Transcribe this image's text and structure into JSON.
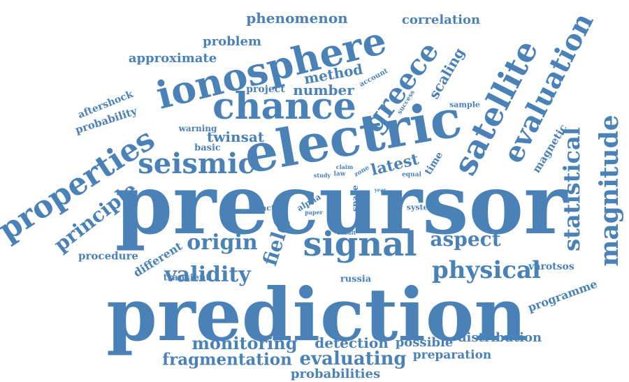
{
  "color": "#4a82b8",
  "words": {
    "w0": "precursor",
    "w1": "prediction",
    "w2": "electric",
    "w3": "ionosphere",
    "w4": "chance",
    "w5": "signal",
    "w6": "satellite",
    "w7": "evaluation",
    "w8": "magnitude",
    "w9": "properties",
    "w10": "statistical",
    "w11": "seismic",
    "w12": "greece",
    "w13": "physical",
    "w14": "principle",
    "w15": "origin",
    "w16": "validity",
    "w17": "aspect",
    "w18": "monitoring",
    "w19": "fragmentation",
    "w20": "evaluating",
    "w21": "field",
    "w22": "detection",
    "w23": "latest",
    "w24": "probabilities",
    "w25": "twinsat",
    "w26": "possible",
    "w27": "distribution",
    "w28": "phenomenon",
    "w29": "method",
    "w30": "number",
    "w31": "correlation",
    "w32": "scaling",
    "w33": "approximate",
    "w34": "problem",
    "w35": "preparation",
    "w36": "programme",
    "w37": "different",
    "w38": "procedure",
    "w39": "aftershock",
    "w40": "probability",
    "w41": "project",
    "w42": "magnetic",
    "w43": "varotsos",
    "w44": "transient",
    "w45": "time",
    "w46": "russia",
    "w47": "warning",
    "w48": "basic",
    "w49": "sample",
    "w50": "system",
    "w51": "alpha",
    "w52": "fractal",
    "w53": "space",
    "w54": "account",
    "w55": "success",
    "w56": "equal",
    "w57": "law",
    "w58": "study",
    "w59": "claim",
    "w60": "zone",
    "w61": "paper",
    "w62": "result",
    "w63": "year"
  }
}
